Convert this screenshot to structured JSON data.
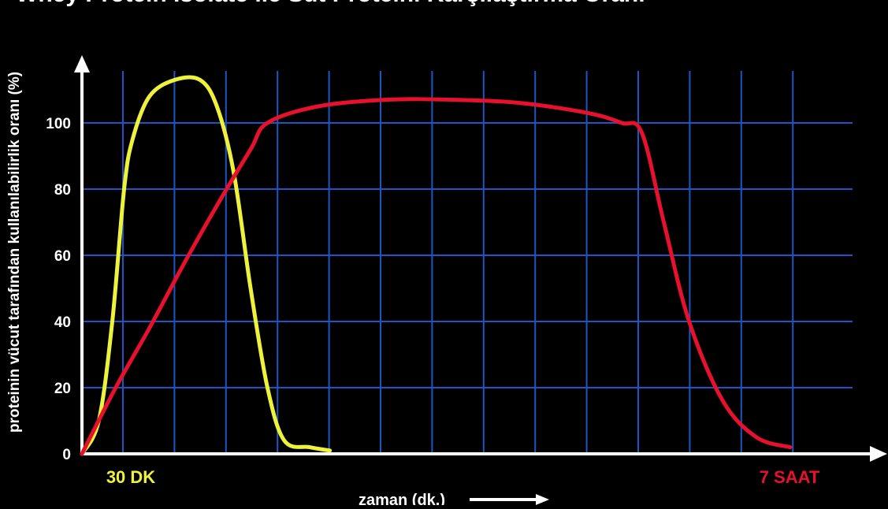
{
  "chart_data": {
    "type": "line",
    "title": "Whey Protein Isolate ile Süt Proteini Karşılaştırma Oranı",
    "xlabel": "zaman (dk.)",
    "ylabel": "proteinin vücut tarafından kullanılabilirlik oranı (%)",
    "ylim": [
      0,
      115
    ],
    "yticks": [
      0,
      20,
      40,
      60,
      80,
      100
    ],
    "xlim": [
      0,
      420
    ],
    "grid": true,
    "colors": {
      "background": "#000000",
      "grid": "#1a56c4",
      "axis": "#ffffff"
    },
    "series": [
      {
        "color": "#eef23a",
        "x": [
          0,
          10,
          18,
          25,
          30,
          40,
          55,
          70,
          80,
          90,
          100,
          110,
          120,
          135,
          147
        ],
        "y": [
          0,
          10,
          40,
          80,
          95,
          108,
          113,
          113,
          105,
          85,
          50,
          20,
          4,
          2,
          1
        ]
      },
      {
        "color": "#e8112d",
        "x": [
          0,
          20,
          40,
          60,
          80,
          100,
          110,
          140,
          180,
          220,
          260,
          300,
          320,
          332,
          345,
          360,
          380,
          400,
          420
        ],
        "y": [
          0,
          20,
          38,
          57,
          75,
          92,
          100,
          105,
          107,
          107,
          106,
          103,
          100,
          97,
          70,
          40,
          16,
          5,
          2
        ]
      }
    ],
    "annotations": [
      {
        "text": "30 DK",
        "color": "#eef23a"
      },
      {
        "text": "7 SAAT",
        "color": "#e8112d"
      }
    ]
  }
}
